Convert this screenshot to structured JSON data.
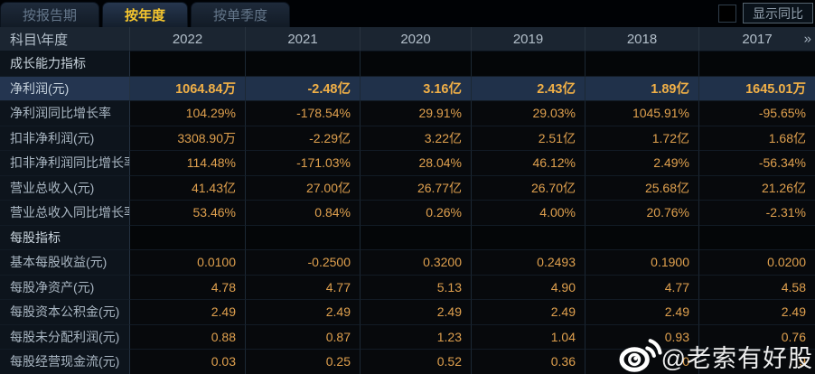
{
  "tabs": [
    {
      "label": "按报告期",
      "active": false
    },
    {
      "label": "按年度",
      "active": true
    },
    {
      "label": "按单季度",
      "active": false
    }
  ],
  "controls": {
    "show_yoy_label": "显示同比",
    "checkbox_checked": false
  },
  "table": {
    "corner_label": "科目\\年度",
    "years": [
      "2022",
      "2021",
      "2020",
      "2019",
      "2018",
      "2017"
    ],
    "more_icon": "»",
    "rows": [
      {
        "type": "section",
        "label": "成长能力指标",
        "values": [
          "",
          "",
          "",
          "",
          "",
          ""
        ]
      },
      {
        "type": "data",
        "highlight": true,
        "label": "净利润(元)",
        "values": [
          "1064.84万",
          "-2.48亿",
          "3.16亿",
          "2.43亿",
          "1.89亿",
          "1645.01万"
        ]
      },
      {
        "type": "data",
        "label": "净利润同比增长率",
        "values": [
          "104.29%",
          "-178.54%",
          "29.91%",
          "29.03%",
          "1045.91%",
          "-95.65%"
        ]
      },
      {
        "type": "data",
        "label": "扣非净利润(元)",
        "values": [
          "3308.90万",
          "-2.29亿",
          "3.22亿",
          "2.51亿",
          "1.72亿",
          "1.68亿"
        ]
      },
      {
        "type": "data",
        "label": "扣非净利润同比增长率",
        "values": [
          "114.48%",
          "-171.03%",
          "28.04%",
          "46.12%",
          "2.49%",
          "-56.34%"
        ]
      },
      {
        "type": "data",
        "label": "营业总收入(元)",
        "values": [
          "41.43亿",
          "27.00亿",
          "26.77亿",
          "26.70亿",
          "25.68亿",
          "21.26亿"
        ]
      },
      {
        "type": "data",
        "label": "营业总收入同比增长率",
        "values": [
          "53.46%",
          "0.84%",
          "0.26%",
          "4.00%",
          "20.76%",
          "-2.31%"
        ]
      },
      {
        "type": "section",
        "label": "每股指标",
        "values": [
          "",
          "",
          "",
          "",
          "",
          ""
        ]
      },
      {
        "type": "data",
        "label": "基本每股收益(元)",
        "values": [
          "0.0100",
          "-0.2500",
          "0.3200",
          "0.2493",
          "0.1900",
          "0.0200"
        ]
      },
      {
        "type": "data",
        "label": "每股净资产(元)",
        "values": [
          "4.78",
          "4.77",
          "5.13",
          "4.90",
          "4.77",
          "4.58"
        ]
      },
      {
        "type": "data",
        "label": "每股资本公积金(元)",
        "values": [
          "2.49",
          "2.49",
          "2.49",
          "2.49",
          "2.49",
          "2.49"
        ]
      },
      {
        "type": "data",
        "label": "每股未分配利润(元)",
        "values": [
          "0.88",
          "0.87",
          "1.23",
          "1.04",
          "0.93",
          "0.76"
        ]
      },
      {
        "type": "data",
        "label": "每股经营现金流(元)",
        "values": [
          "0.03",
          "0.25",
          "0.52",
          "0.36",
          "0",
          "9"
        ]
      }
    ]
  },
  "watermark": {
    "handle": "@老索有好股",
    "logo": "weibo-icon"
  },
  "colors": {
    "accent_gold": "#dfa04e",
    "bold_gold": "#f1b047",
    "active_tab_text": "#f6c62e",
    "header_bg": "#1b2531",
    "highlight_row_bg": "#20314a",
    "label_text": "#a9b6c2"
  }
}
